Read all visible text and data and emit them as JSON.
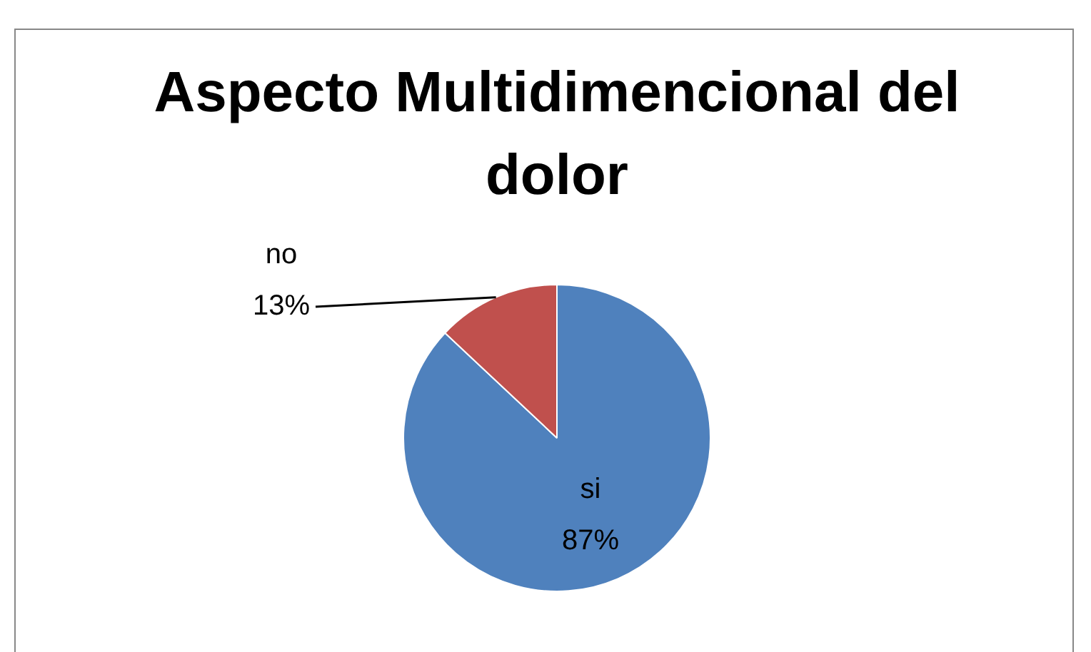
{
  "chart_data": {
    "type": "pie",
    "title": "Aspecto Multidimencional del dolor",
    "categories": [
      "si",
      "no"
    ],
    "values": [
      87,
      13
    ],
    "colors": [
      "#4f81bd",
      "#c0504d"
    ],
    "value_labels": [
      "87%",
      "13%"
    ],
    "legend": false
  }
}
